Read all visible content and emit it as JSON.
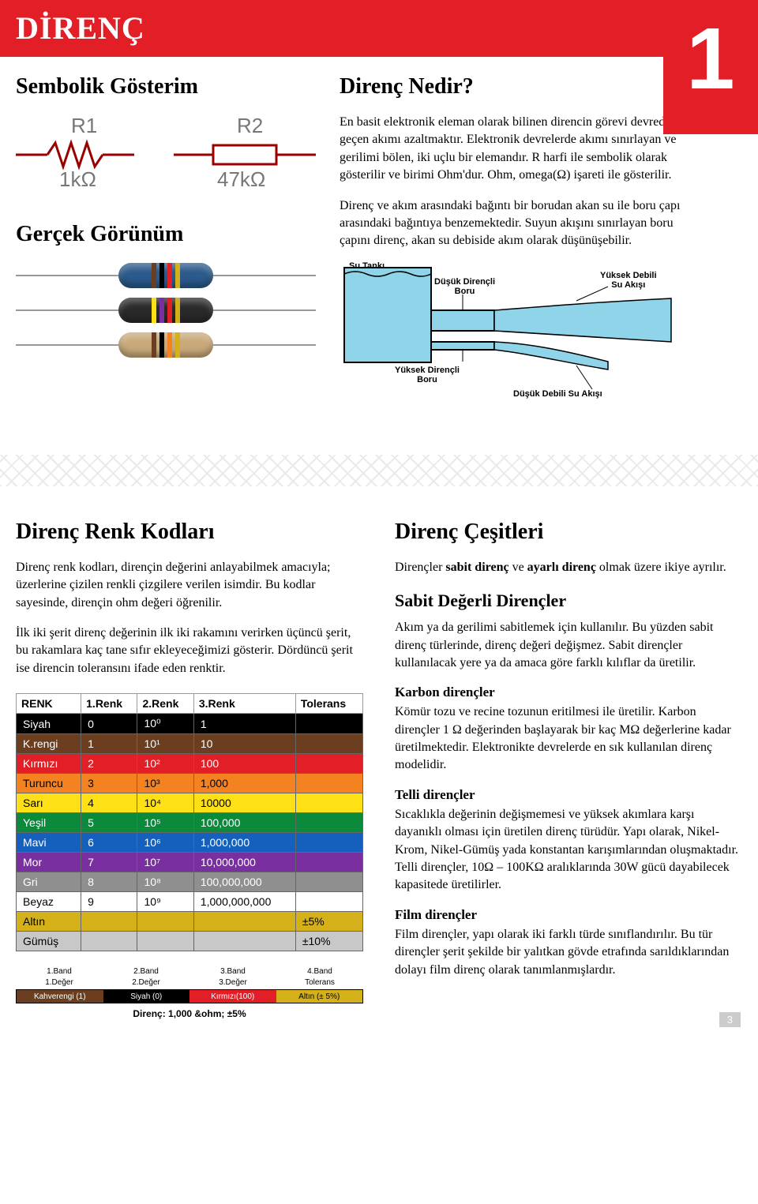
{
  "header": {
    "title": "DİRENÇ",
    "page_number": "1"
  },
  "left_top": {
    "h_symbol": "Sembolik Gösterim",
    "h_real": "Gerçek Görünüm",
    "sym1_label": "R1",
    "sym1_val": "1kΩ",
    "sym2_label": "R2",
    "sym2_val": "47kΩ"
  },
  "right_top": {
    "h_what": "Direnç Nedir?",
    "p1": "En basit elektronik eleman olarak bilinen direncin görevi devreden geçen akımı azaltmaktır. Elektronik devrelerde akımı sınırlayan ve gerilimi bölen, iki uçlu bir elemandır. R harfi ile sembolik olarak gösterilir ve birimi Ohm'dur. Ohm, omega(Ω) işareti ile gösterilir.",
    "p2": "Direnç ve akım arasındaki bağıntı bir borudan akan su ile boru çapı arasındaki bağıntıya benzemektedir. Suyun akışını sınırlayan boru çapını direnç, akan su debiside akım olarak düşünüşebilir."
  },
  "water": {
    "tank": "Su Tankı",
    "low_r": "Düşük Dirençli\nBoru",
    "high_flow": "Yüksek Debili\nSu Akışı",
    "high_r": "Yüksek Dirençli\nBoru",
    "low_flow": "Düşük Debili Su Akışı"
  },
  "color_codes": {
    "h": "Direnç Renk Kodları",
    "p1": "Direnç renk kodları, dirençin değerini anlayabilmek amacıyla; üzerlerine çizilen renkli çizgilere verilen isimdir. Bu kodlar sayesinde, dirençin ohm değeri öğrenilir.",
    "p2": "İlk iki şerit direnç değerinin ilk iki rakamını verirken üçüncü şerit, bu rakamlara kaç tane sıfır ekleyeceğimizi gösterir. Dördüncü şerit ise direncin toleransını ifade eden renktir.",
    "table": {
      "headers": [
        "RENK",
        "1.Renk",
        "2.Renk",
        "3.Renk",
        "Tolerans"
      ],
      "rows": [
        {
          "name": "Siyah",
          "d1": "0",
          "d2": "10⁰",
          "d3": "1",
          "tol": "",
          "bg": "#000000",
          "fg": "#ffffff"
        },
        {
          "name": "K.rengi",
          "d1": "1",
          "d2": "10¹",
          "d3": "10",
          "tol": "",
          "bg": "#6b3e1f",
          "fg": "#ffffff"
        },
        {
          "name": "Kırmızı",
          "d1": "2",
          "d2": "10²",
          "d3": "100",
          "tol": "",
          "bg": "#e21e26",
          "fg": "#ffffff"
        },
        {
          "name": "Turuncu",
          "d1": "3",
          "d2": "10³",
          "d3": "1,000",
          "tol": "",
          "bg": "#f58220",
          "fg": "#000000"
        },
        {
          "name": "Sarı",
          "d1": "4",
          "d2": "10⁴",
          "d3": "10000",
          "tol": "",
          "bg": "#fde016",
          "fg": "#000000"
        },
        {
          "name": "Yeşil",
          "d1": "5",
          "d2": "10⁵",
          "d3": "100,000",
          "tol": "",
          "bg": "#0a8a3a",
          "fg": "#ffffff"
        },
        {
          "name": "Mavi",
          "d1": "6",
          "d2": "10⁶",
          "d3": "1,000,000",
          "tol": "",
          "bg": "#1560bd",
          "fg": "#ffffff"
        },
        {
          "name": "Mor",
          "d1": "7",
          "d2": "10⁷",
          "d3": "10,000,000",
          "tol": "",
          "bg": "#7a2fa0",
          "fg": "#ffffff"
        },
        {
          "name": "Gri",
          "d1": "8",
          "d2": "10⁸",
          "d3": "100,000,000",
          "tol": "",
          "bg": "#8f8f8f",
          "fg": "#ffffff"
        },
        {
          "name": "Beyaz",
          "d1": "9",
          "d2": "10⁹",
          "d3": "1,000,000,000",
          "tol": "",
          "bg": "#ffffff",
          "fg": "#000000"
        },
        {
          "name": "Altın",
          "d1": "",
          "d2": "",
          "d3": "",
          "tol": "±5%",
          "bg": "#d4b11a",
          "fg": "#000000"
        },
        {
          "name": "Gümüş",
          "d1": "",
          "d2": "",
          "d3": "",
          "tol": "±10%",
          "bg": "#c8c8c8",
          "fg": "#000000"
        }
      ]
    },
    "example": {
      "labels_top": [
        "1.Band",
        "2.Band",
        "3.Band",
        "4.Band"
      ],
      "labels_sub": [
        "1.Değer",
        "2.Değer",
        "3.Değer",
        "Tolerans"
      ],
      "segs": [
        {
          "t": "Kahverengi (1)",
          "bg": "#6b3e1f"
        },
        {
          "t": "Siyah (0)",
          "bg": "#000000"
        },
        {
          "t": "Kırmızı(100)",
          "bg": "#e21e26"
        },
        {
          "t": "Altın (± 5%)",
          "bg": "#d4b11a",
          "fg": "#000"
        }
      ],
      "result": "Direnç: 1,000 &ohm; ±5%"
    }
  },
  "types": {
    "h": "Direnç Çeşitleri",
    "p_intro": "Dirençler sabit direnç ve ayarlı direnç olmak üzere ikiye ayrılır.",
    "h_fixed": "Sabit Değerli Dirençler",
    "p_fixed": "Akım ya da gerilimi sabitlemek için kullanılır. Bu yüzden sabit direnç türlerinde, direnç değeri değişmez. Sabit dirençler kullanılacak yere ya da amaca göre farklı kılıflar da üretilir.",
    "h_carbon": "Karbon dirençler",
    "p_carbon": "Kömür tozu ve recine tozunun eritilmesi ile üretilir. Karbon dirençler 1 Ω değerinden başlayarak bir kaç MΩ değerlerine kadar üretilmektedir. Elektronikte devrelerde en sık kullanılan direnç modelidir.",
    "h_wire": "Telli dirençler",
    "p_wire": "Sıcaklıkla değerinin değişmemesi ve yüksek akımlara karşı dayanıklı olması için üretilen direnç türüdür. Yapı olarak, Nikel-Krom, Nikel-Gümüş yada konstantan karışımlarından oluşmaktadır. Telli dirençler, 10Ω – 100KΩ aralıklarında 30W gücü dayabilecek kapasitede üretilirler.",
    "h_film": "Film dirençler",
    "p_film": "Film dirençler, yapı olarak iki farklı türde sınıflandırılır. Bu tür dirençler şerit şekilde bir yalıtkan gövde etrafında sarıldıklarından dolayı film direnç olarak tanımlanmışlardır."
  },
  "resistors_real": [
    {
      "body": "#2b5a8c",
      "bands": [
        "#6b3e1f",
        "#000000",
        "#e21e26",
        "#d4b11a"
      ]
    },
    {
      "body": "#2a2a2a",
      "bands": [
        "#fde016",
        "#7a2fa0",
        "#e21e26",
        "#d4b11a"
      ]
    },
    {
      "body": "#c9a97a",
      "bands": [
        "#6b3e1f",
        "#000000",
        "#f58220",
        "#d4b11a"
      ]
    }
  ],
  "footer_page": "3"
}
